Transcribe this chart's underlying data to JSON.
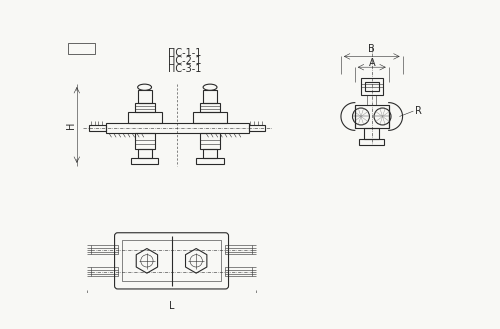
{
  "bg_color": "#f8f8f5",
  "line_color": "#2a2a2a",
  "title_lines": [
    "ПС-1-1",
    "ПС-2-1",
    "ПС-3-1"
  ],
  "fig_bg": "#f8f8f5"
}
